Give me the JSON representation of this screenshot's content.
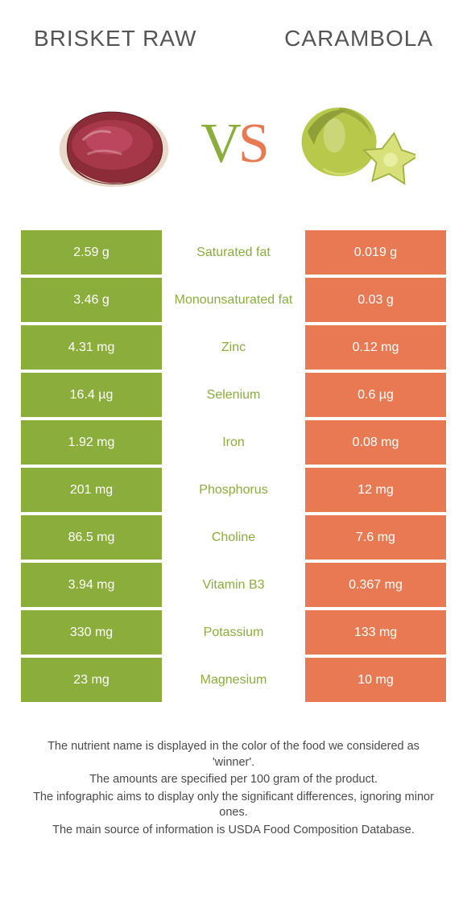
{
  "header": {
    "left_title": "BRISKET RAW",
    "right_title": "CAROMBOLA"
  },
  "vs": {
    "v": "V",
    "s": "S"
  },
  "colors": {
    "green": "#8aad3c",
    "orange": "#e77a53"
  },
  "rows": [
    {
      "left": "2.59 g",
      "label": "Saturated fat",
      "right": "0.019 g",
      "winner": "green"
    },
    {
      "left": "3.46 g",
      "label": "Monounsaturated fat",
      "right": "0.03 g",
      "winner": "green"
    },
    {
      "left": "4.31 mg",
      "label": "Zinc",
      "right": "0.12 mg",
      "winner": "green"
    },
    {
      "left": "16.4 µg",
      "label": "Selenium",
      "right": "0.6 µg",
      "winner": "green"
    },
    {
      "left": "1.92 mg",
      "label": "Iron",
      "right": "0.08 mg",
      "winner": "green"
    },
    {
      "left": "201 mg",
      "label": "Phosphorus",
      "right": "12 mg",
      "winner": "green"
    },
    {
      "left": "86.5 mg",
      "label": "Choline",
      "right": "7.6 mg",
      "winner": "green"
    },
    {
      "left": "3.94 mg",
      "label": "Vitamin B3",
      "right": "0.367 mg",
      "winner": "green"
    },
    {
      "left": "330 mg",
      "label": "Potassium",
      "right": "133 mg",
      "winner": "green"
    },
    {
      "left": "23 mg",
      "label": "Magnesium",
      "right": "10 mg",
      "winner": "green"
    }
  ],
  "footer": {
    "line1": "The nutrient name is displayed in the color of the food we considered as 'winner'.",
    "line2": "The amounts are specified per 100 gram of the product.",
    "line3": "The infographic aims to display only the significant differences, ignoring minor ones.",
    "line4": "The main source of information is USDA Food Composition Database."
  }
}
